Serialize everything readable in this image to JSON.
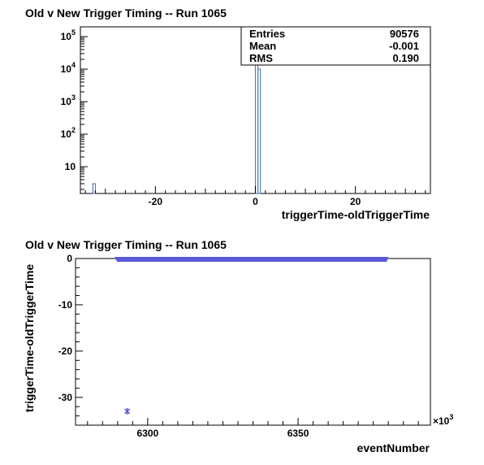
{
  "chart_data": [
    {
      "type": "bar",
      "title": "Old v New Trigger Timing -- Run 1065",
      "xlabel": "triggerTime-oldTriggerTime",
      "ylabel": "",
      "x_ticks": [
        "-20",
        "0",
        "20"
      ],
      "y_ticks": [
        {
          "base": "10",
          "exp": ""
        },
        {
          "base": "10",
          "exp": "2"
        },
        {
          "base": "10",
          "exp": "3"
        },
        {
          "base": "10",
          "exp": "4"
        },
        {
          "base": "10",
          "exp": "5"
        }
      ],
      "y_scale": "log",
      "xlim": [
        -35,
        35
      ],
      "ylim": [
        1.5,
        200000
      ],
      "bins": [
        {
          "x0": -32.5,
          "x1": -32.0,
          "value": 3
        },
        {
          "x0": 0.0,
          "x1": 0.5,
          "value": 80000
        },
        {
          "x0": 0.5,
          "x1": 1.0,
          "value": 10000
        }
      ],
      "stats": {
        "entries_label": "Entries",
        "entries": "90576",
        "mean_label": "Mean",
        "mean": "-0.001",
        "rms_label": "RMS",
        "rms": "0.190"
      },
      "color": "#5b7fb8"
    },
    {
      "type": "scatter",
      "title": "Old v New Trigger Timing -- Run 1065",
      "xlabel": "eventNumber",
      "ylabel": "triggerTime-oldTriggerTime",
      "x_ticks": [
        "6300",
        "6350"
      ],
      "x_multiplier": "×10",
      "x_multiplier_exp": "3",
      "y_ticks": [
        "0",
        "-10",
        "-20",
        "-30"
      ],
      "xlim": [
        6276,
        6394
      ],
      "ylim": [
        -36,
        0
      ],
      "points": [
        {
          "x": 6293.2,
          "y": -33
        }
      ],
      "band": {
        "x0": 6289,
        "x1": 6380,
        "y": 0
      },
      "color": "#5a5ad6"
    }
  ]
}
